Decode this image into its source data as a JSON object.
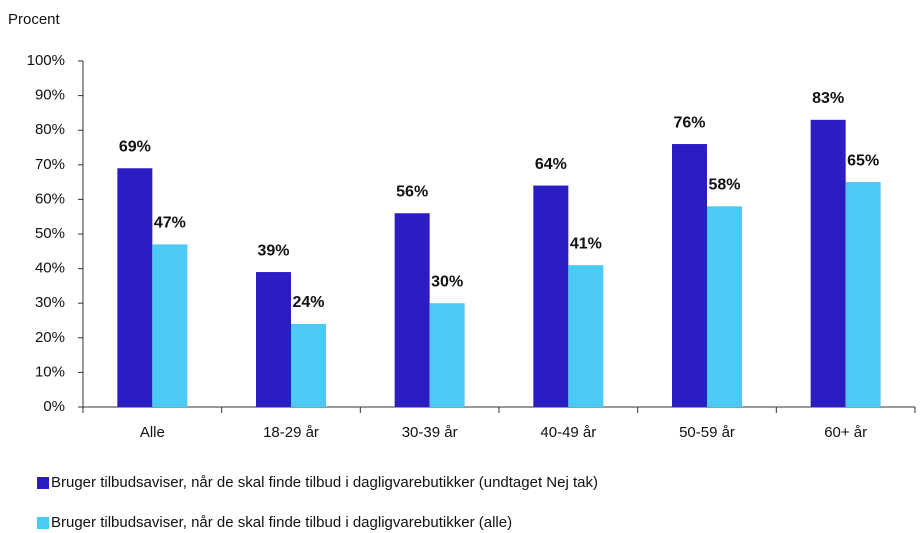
{
  "chart_data": {
    "type": "bar",
    "y_label": "Procent",
    "categories": [
      "Alle",
      "18-29 år",
      "30-39 år",
      "40-49 år",
      "50-59 år",
      "60+ år"
    ],
    "series": [
      {
        "name": "Bruger tilbudsaviser, når de skal finde tilbud i dagligvarebutikker (undtaget Nej tak)",
        "color": "#2b1dc4",
        "values": [
          69,
          39,
          56,
          64,
          76,
          83
        ],
        "value_labels": [
          "69%",
          "39%",
          "56%",
          "64%",
          "76%",
          "83%"
        ]
      },
      {
        "name": "Bruger tilbudsaviser, når de skal finde tilbud i dagligvarebutikker (alle)",
        "color": "#4dc9f6",
        "values": [
          47,
          24,
          30,
          41,
          58,
          65
        ],
        "value_labels": [
          "47%",
          "24%",
          "30%",
          "41%",
          "58%",
          "65%"
        ]
      }
    ],
    "ylim": [
      0,
      100
    ],
    "yticks": [
      {
        "value": 0,
        "label": "0%"
      },
      {
        "value": 10,
        "label": "10%"
      },
      {
        "value": 20,
        "label": "20%"
      },
      {
        "value": 30,
        "label": "30%"
      },
      {
        "value": 40,
        "label": "40%"
      },
      {
        "value": 50,
        "label": "50%"
      },
      {
        "value": 60,
        "label": "60%"
      },
      {
        "value": 70,
        "label": "70%"
      },
      {
        "value": 80,
        "label": "80%"
      },
      {
        "value": 90,
        "label": "90%"
      },
      {
        "value": 100,
        "label": "100%"
      }
    ],
    "grid": false,
    "legend": "bottom"
  }
}
